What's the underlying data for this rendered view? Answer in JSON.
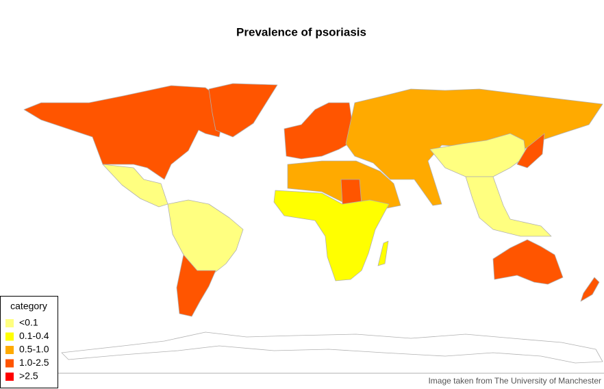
{
  "title": "Prevalence of psoriasis",
  "legend": {
    "title": "category",
    "items": [
      {
        "label": "<0.1",
        "color": "#ffff80"
      },
      {
        "label": "0.1-0.4",
        "color": "#ffff00"
      },
      {
        "label": "0.5-1.0",
        "color": "#ffaa00"
      },
      {
        "label": "1.0-2.5",
        "color": "#ff5500"
      },
      {
        "label": ">2.5",
        "color": "#ff0000"
      }
    ]
  },
  "caption": "Image taken from The University of Manchester"
}
